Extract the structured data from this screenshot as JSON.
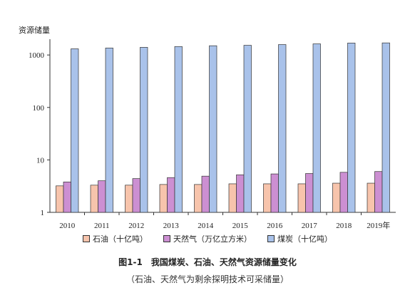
{
  "chart_data": {
    "type": "bar",
    "y_axis_label": "资源储量",
    "y_scale": "log",
    "ylim": [
      1,
      2000
    ],
    "y_ticks": [
      "1",
      "10",
      "100",
      "1000"
    ],
    "grid": false,
    "legend_position": "bottom",
    "categories": [
      "2010",
      "2011",
      "2012",
      "2013",
      "2014",
      "2015",
      "2016",
      "2017",
      "2018",
      "2019年"
    ],
    "series": [
      {
        "name": "石油（十亿吨）",
        "color": "#f7c4ac",
        "values": [
          3.2,
          3.3,
          3.3,
          3.4,
          3.4,
          3.5,
          3.5,
          3.5,
          3.6,
          3.6
        ]
      },
      {
        "name": "天然气（万亿立方米）",
        "color": "#cc8fd2",
        "values": [
          3.8,
          4.0,
          4.4,
          4.6,
          4.9,
          5.2,
          5.4,
          5.5,
          5.8,
          6.0
        ]
      },
      {
        "name": "煤炭（十亿吨）",
        "color": "#a9c2ea",
        "values": [
          1310,
          1360,
          1400,
          1450,
          1500,
          1530,
          1580,
          1630,
          1690,
          1700
        ]
      }
    ]
  },
  "caption": {
    "title": "图1-1　我国煤炭、石油、天然气资源储量变化",
    "note": "（石油、天然气为剩余探明技术可采储量）"
  }
}
